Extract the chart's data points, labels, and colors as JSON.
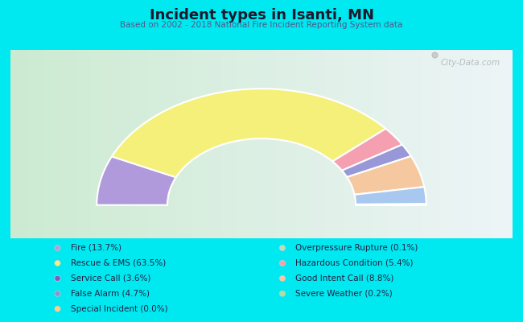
{
  "title": "Incident types in Isanti, MN",
  "subtitle": "Based on 2002 - 2018 National Fire Incident Reporting System data",
  "bg_cyan": "#00e8f0",
  "bg_chart_tl": "#c8e8d8",
  "bg_chart_tr": "#e8f0f8",
  "bg_chart_br": "#f0f4f8",
  "bg_chart_bl": "#c8e8d0",
  "watermark": "City-Data.com",
  "segments": [
    {
      "label": "Fire (13.7%)",
      "value": 13.7,
      "color": "#b39ddb"
    },
    {
      "label": "Rescue & EMS (63.5%)",
      "value": 63.5,
      "color": "#f5f07a"
    },
    {
      "label": "Hazardous Condition (5.4%)",
      "value": 5.4,
      "color": "#f4a0b0"
    },
    {
      "label": "False Alarm (4.7%)",
      "value": 4.7,
      "color": "#9090d8"
    },
    {
      "label": "Good Intent Call (8.8%)",
      "value": 8.8,
      "color": "#f5c8a0"
    },
    {
      "label": "Severe Weather (0.2%)",
      "value": 0.2,
      "color": "#aae0a0"
    },
    {
      "label": "Overpressure Rupture (0.1%)",
      "value": 0.1,
      "color": "#b8e0b8"
    },
    {
      "label": "Service Call (3.6%)",
      "value": 3.6,
      "color": "#7e57c2"
    },
    {
      "label": "Special Incident (0.0%)",
      "value": 0.0,
      "color": "#ffd080"
    }
  ],
  "outer_r": 1.05,
  "inner_r": 0.6,
  "legend_left": [
    {
      "label": "Fire (13.7%)",
      "color": "#b39ddb"
    },
    {
      "label": "Rescue & EMS (63.5%)",
      "color": "#f5f07a"
    },
    {
      "label": "Service Call (3.6%)",
      "color": "#7e57c2"
    },
    {
      "label": "False Alarm (4.7%)",
      "color": "#9090d8"
    },
    {
      "label": "Special Incident (0.0%)",
      "color": "#ffd080"
    }
  ],
  "legend_right": [
    {
      "label": "Overpressure Rupture (0.1%)",
      "color": "#b8e0b8"
    },
    {
      "label": "Hazardous Condition (5.4%)",
      "color": "#f4a0b0"
    },
    {
      "label": "Good Intent Call (8.8%)",
      "color": "#f5c8a0"
    },
    {
      "label": "Severe Weather (0.2%)",
      "color": "#aae0a0"
    }
  ]
}
